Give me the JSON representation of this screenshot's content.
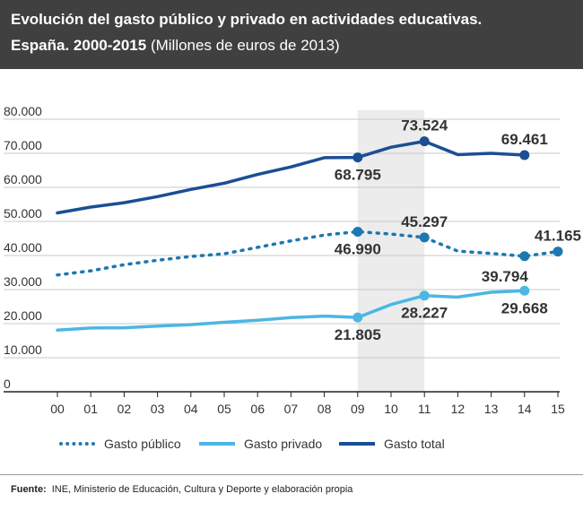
{
  "header": {
    "title_line1": "Evolución del gasto público y privado en actividades educativas.",
    "title_line2": "España. 2000-2015",
    "title_unit": "(Millones de euros de 2013)"
  },
  "colors": {
    "total": "#1a4f94",
    "publico": "#1c78b0",
    "privado": "#4cb6e4",
    "highlight": "#ececec",
    "header_bg": "#404040"
  },
  "chart_data": {
    "type": "line",
    "title": "Evolución del gasto público y privado en actividades educativas. España. 2000-2015",
    "x": [
      "00",
      "01",
      "02",
      "03",
      "04",
      "05",
      "06",
      "07",
      "08",
      "09",
      "10",
      "11",
      "12",
      "13",
      "14",
      "15"
    ],
    "ylim": [
      0,
      80000
    ],
    "yticks": [
      "0",
      "10.000",
      "20.000",
      "30.000",
      "40.000",
      "50.000",
      "60.000",
      "70.000",
      "80.000"
    ],
    "highlight_range": [
      "09",
      "11"
    ],
    "grid": true,
    "legend_position": "bottom",
    "series": [
      {
        "key": "total",
        "name": "Gasto total",
        "style": "solid",
        "values": [
          52500,
          54200,
          55500,
          57300,
          59400,
          61200,
          63800,
          66000,
          68700,
          68795,
          71800,
          73524,
          69600,
          70000,
          69461,
          null
        ]
      },
      {
        "key": "publico",
        "name": "Gasto público",
        "style": "dotted",
        "values": [
          34300,
          35500,
          37300,
          38600,
          39700,
          40500,
          42400,
          44300,
          46000,
          46990,
          46300,
          45297,
          41300,
          40600,
          39794,
          41165
        ]
      },
      {
        "key": "privado",
        "name": "Gasto privado",
        "style": "solid",
        "values": [
          18100,
          18700,
          18800,
          19300,
          19700,
          20400,
          21000,
          21800,
          22200,
          21805,
          25600,
          28227,
          27800,
          29200,
          29668,
          null
        ]
      }
    ],
    "annotations": [
      {
        "series": "total",
        "x": "09",
        "label": "68.795",
        "pos": "below"
      },
      {
        "series": "total",
        "x": "11",
        "label": "73.524",
        "pos": "above"
      },
      {
        "series": "total",
        "x": "14",
        "label": "69.461",
        "pos": "above"
      },
      {
        "series": "publico",
        "x": "09",
        "label": "46.990",
        "pos": "below"
      },
      {
        "series": "publico",
        "x": "11",
        "label": "45.297",
        "pos": "above"
      },
      {
        "series": "publico",
        "x": "14",
        "label": "39.794",
        "pos": "below-left"
      },
      {
        "series": "publico",
        "x": "15",
        "label": "41.165",
        "pos": "above"
      },
      {
        "series": "privado",
        "x": "09",
        "label": "21.805",
        "pos": "below"
      },
      {
        "series": "privado",
        "x": "11",
        "label": "28.227",
        "pos": "below"
      },
      {
        "series": "privado",
        "x": "14",
        "label": "29.668",
        "pos": "below"
      }
    ]
  },
  "legend": [
    {
      "key": "publico",
      "label": "Gasto público"
    },
    {
      "key": "privado",
      "label": "Gasto privado"
    },
    {
      "key": "total",
      "label": "Gasto total"
    }
  ],
  "source": {
    "label": "Fuente:",
    "text": "INE, Ministerio de Educación, Cultura y Deporte y elaboración propia"
  }
}
